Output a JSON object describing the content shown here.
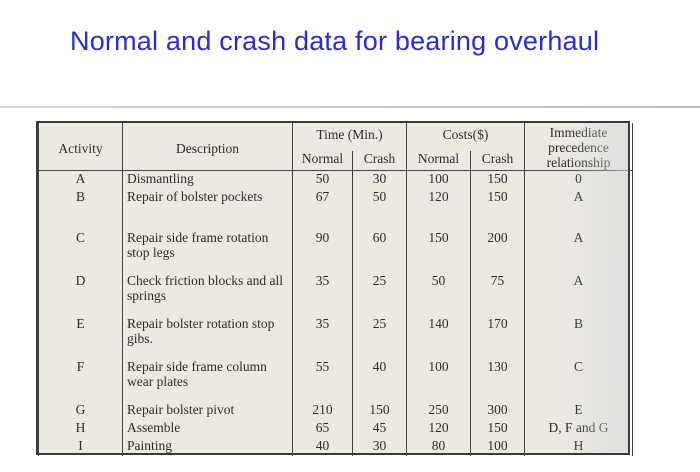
{
  "title": "Normal and crash data for bearing overhaul",
  "table": {
    "headers": {
      "activity": "Activity",
      "description": "Description",
      "time_group": "Time (Min.)",
      "costs_group": "Costs($)",
      "precedence_lines": [
        "Immediate",
        "precedence",
        "relationship"
      ],
      "normal": "Normal",
      "crash": "Crash",
      "cost_normal": "Normal",
      "cost_crash": "Crash"
    },
    "rows": [
      {
        "activity": "A",
        "description": "Dismantling",
        "time_normal": "50",
        "time_crash": "30",
        "cost_normal": "100",
        "cost_crash": "150",
        "precedence": "0"
      },
      {
        "activity": "B",
        "description": "Repair of bolster pockets",
        "time_normal": "67",
        "time_crash": "50",
        "cost_normal": "120",
        "cost_crash": "150",
        "precedence": "A"
      },
      {
        "activity": "C",
        "description": "Repair side frame rotation stop legs",
        "time_normal": "90",
        "time_crash": "60",
        "cost_normal": "150",
        "cost_crash": "200",
        "precedence": "A"
      },
      {
        "activity": "D",
        "description": "Check friction blocks and all springs",
        "time_normal": "35",
        "time_crash": "25",
        "cost_normal": "50",
        "cost_crash": "75",
        "precedence": "A"
      },
      {
        "activity": "E",
        "description": "Repair bolster rotation stop gibs.",
        "time_normal": "35",
        "time_crash": "25",
        "cost_normal": "140",
        "cost_crash": "170",
        "precedence": "B"
      },
      {
        "activity": "F",
        "description": "Repair side frame column wear plates",
        "time_normal": "55",
        "time_crash": "40",
        "cost_normal": "100",
        "cost_crash": "130",
        "precedence": "C"
      },
      {
        "activity": "G",
        "description": "Repair bolster pivot",
        "time_normal": "210",
        "time_crash": "150",
        "cost_normal": "250",
        "cost_crash": "300",
        "precedence": "E"
      },
      {
        "activity": "H",
        "description": "Assemble",
        "time_normal": "65",
        "time_crash": "45",
        "cost_normal": "120",
        "cost_crash": "150",
        "precedence": "D, F and G"
      },
      {
        "activity": "I",
        "description": "Painting",
        "time_normal": "40",
        "time_crash": "30",
        "cost_normal": "80",
        "cost_crash": "100",
        "precedence": "H"
      }
    ]
  }
}
